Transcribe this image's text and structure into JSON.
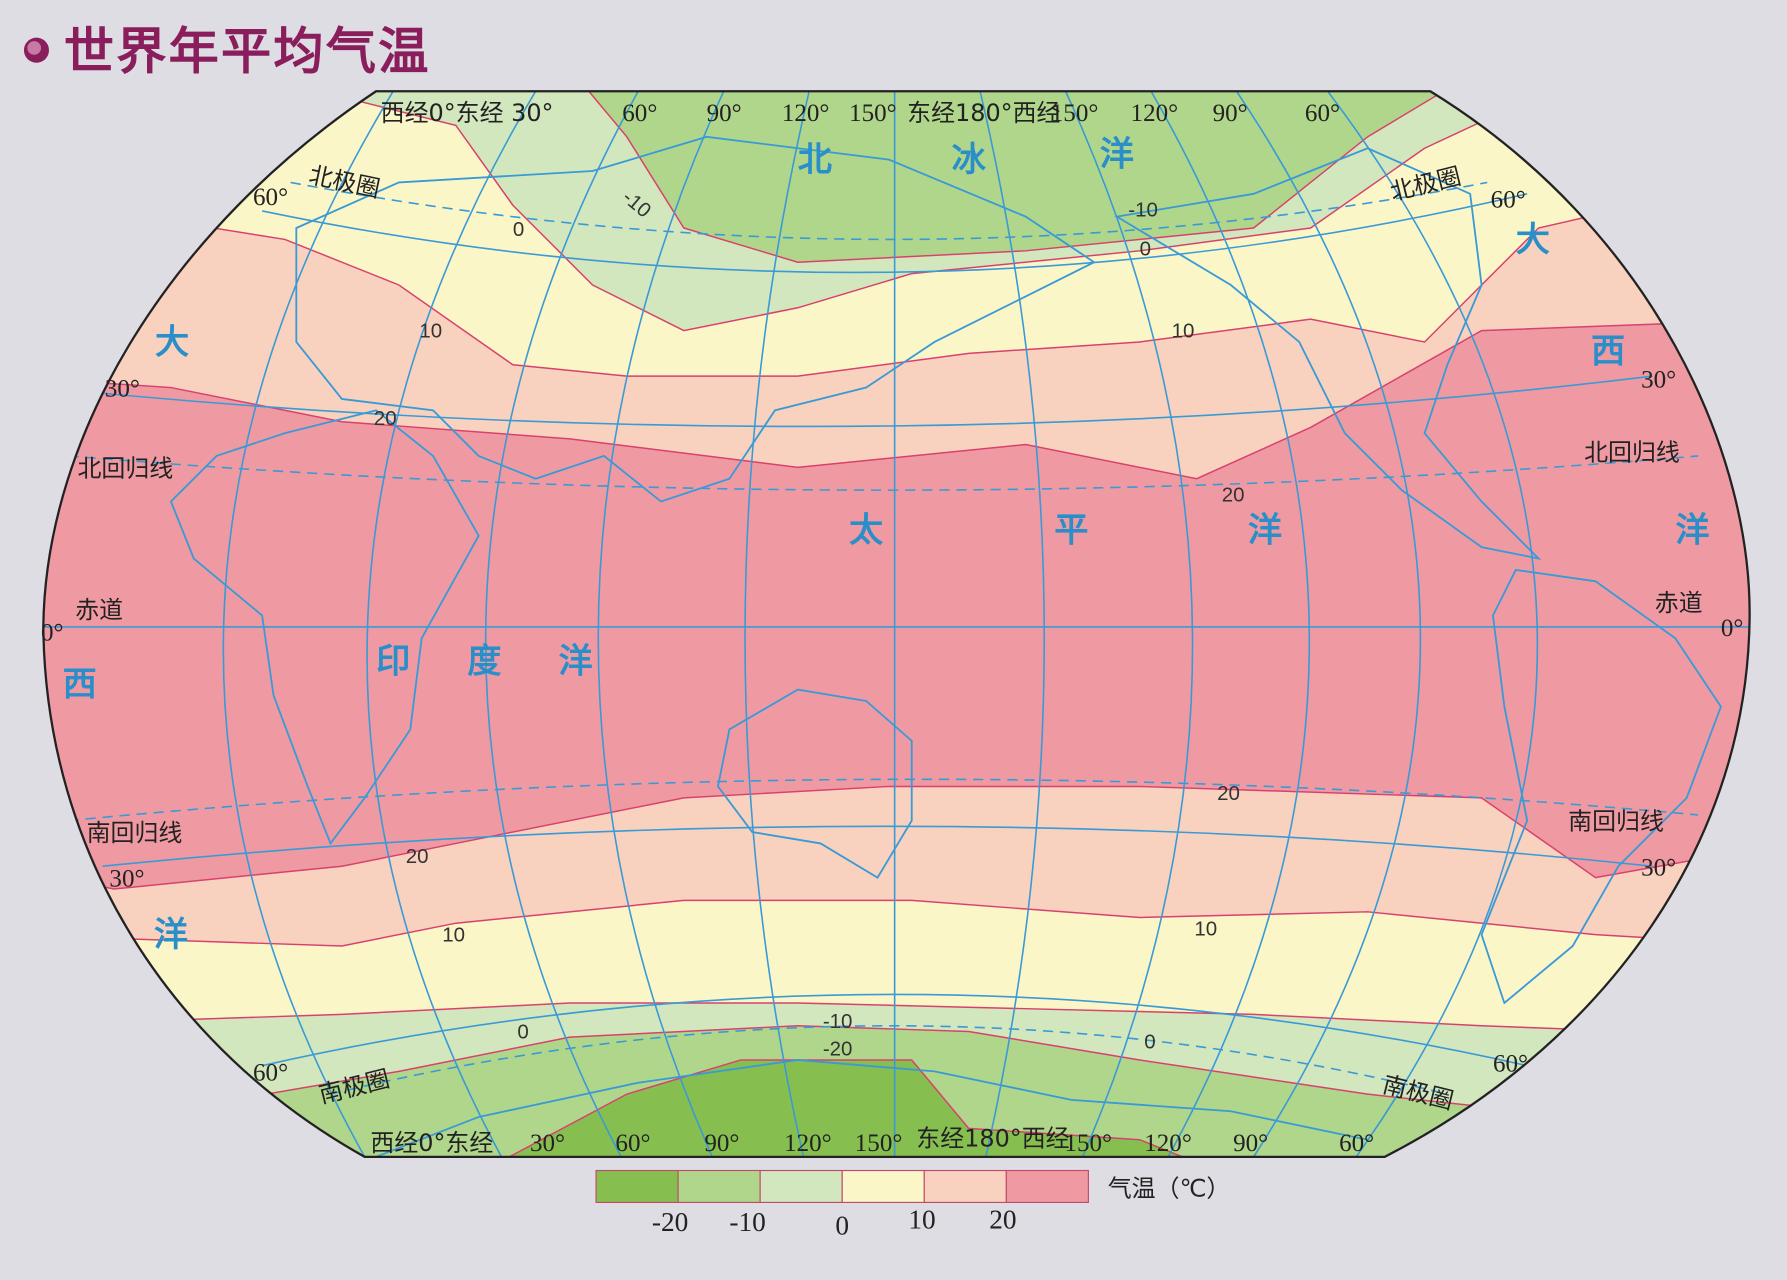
{
  "title": "世界年平均气温",
  "legend": {
    "unit_label": "气温（℃）",
    "ticks": [
      "-20",
      "-10",
      "0",
      "10",
      "20"
    ],
    "colors": [
      "#86bf4f",
      "#b0d68b",
      "#d2e7bd",
      "#fbf6c8",
      "#f8d2bf",
      "#ef9aa3"
    ]
  },
  "top_longitudes": [
    "西经0°东经 30°",
    "60°",
    "90°",
    "120°",
    "150°",
    "东经180°西经",
    "150°",
    "120°",
    "90°",
    "60°"
  ],
  "bottom_longitudes": [
    "西经0°东经",
    "30°",
    "60°",
    "90°",
    "120°",
    "150°",
    "东经180°西经",
    "150°",
    "120°",
    "90°",
    "60°"
  ],
  "latitude_labels": {
    "left": [
      "60°",
      "北极圈",
      "30°",
      "北回归线",
      "0°",
      "赤道",
      "南回归线",
      "30°",
      "60°",
      "南极圈"
    ],
    "right": [
      "北极圈",
      "60°",
      "30°",
      "北回归线",
      "赤道",
      "0°",
      "南回归线",
      "30°",
      "60°",
      "南极圈"
    ]
  },
  "oceans": {
    "arctic": [
      "北",
      "冰",
      "洋"
    ],
    "atlantic_left": [
      "大",
      "西",
      "洋"
    ],
    "atlantic_right": [
      "大",
      "西",
      "洋"
    ],
    "pacific": [
      "太",
      "平",
      "洋"
    ],
    "indian": [
      "印",
      "度",
      "洋"
    ]
  },
  "isotherm_labels": [
    "-10",
    "0",
    "-10",
    "0",
    "10",
    "10",
    "20",
    "20",
    "20",
    "20",
    "10",
    "10",
    "0",
    "-10",
    "-20",
    "0"
  ]
}
